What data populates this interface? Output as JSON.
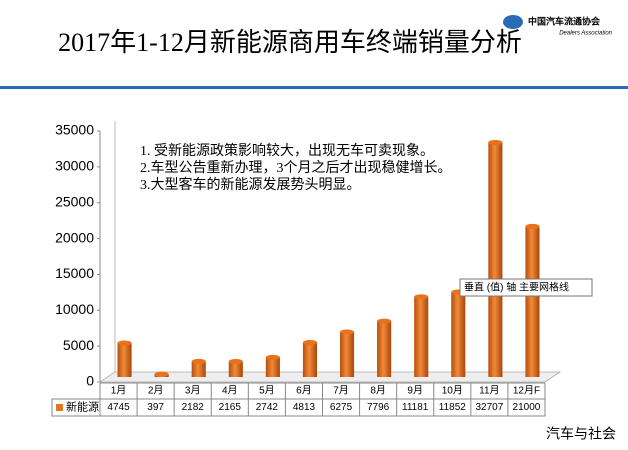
{
  "header": {
    "logo": "中国汽车流通协会",
    "logo_sub": "Dealers Association"
  },
  "chart_data": {
    "type": "bar",
    "title": "2017年1-12月新能源商用车终端销量分析",
    "categories": [
      "1月",
      "2月",
      "3月",
      "4月",
      "5月",
      "6月",
      "7月",
      "8月",
      "9月",
      "10月",
      "11月",
      "12月F"
    ],
    "series": [
      {
        "name": "新能源",
        "color": "#e8731a",
        "values": [
          4745,
          397,
          2182,
          2165,
          2742,
          4813,
          6275,
          7796,
          11181,
          11852,
          32707,
          21000
        ]
      }
    ],
    "ylim": [
      0,
      35000
    ],
    "yticks": [
      0,
      5000,
      10000,
      15000,
      20000,
      25000,
      30000,
      35000
    ],
    "grid": false,
    "annotations": [
      "1. 受新能源政策影响较大，出现无车可卖现象。",
      "2.车型公告重新办理，3个月之后才出现稳健增长。",
      "3.大型客车的新能源发展势头明显。"
    ],
    "tooltip": "垂直 (值) 轴 主要网格线"
  },
  "footer": "汽车与社会"
}
